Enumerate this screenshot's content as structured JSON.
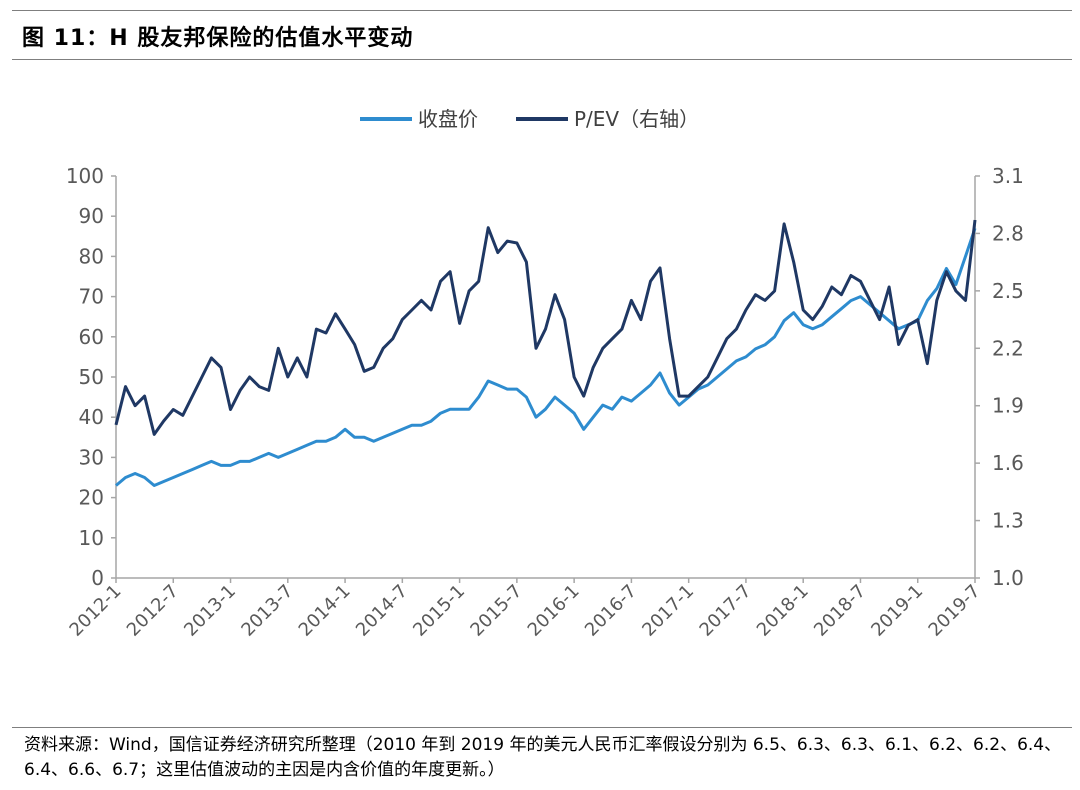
{
  "header": {
    "title": "图 11：H 股友邦保险的估值水平变动"
  },
  "source": {
    "text": "资料来源：Wind，国信证券经济研究所整理（2010 年到 2019 年的美元人民币汇率假设分别为 6.5、6.3、6.3、6.1、6.2、6.2、6.4、6.4、6.6、6.7；这里估值波动的主因是内含价值的年度更新。）"
  },
  "colors": {
    "price": "#2e8ccf",
    "pev": "#1f3864",
    "axis": "#a6a6a6"
  },
  "chart_data": {
    "type": "line",
    "title": "",
    "legend_position": "top",
    "grid": false,
    "x_type": "time",
    "x_range": [
      "2012-01",
      "2019-07"
    ],
    "x_ticks": [
      "2012-1",
      "2012-7",
      "2013-1",
      "2013-7",
      "2014-1",
      "2014-7",
      "2015-1",
      "2015-7",
      "2016-1",
      "2016-7",
      "2017-1",
      "2017-7",
      "2018-1",
      "2018-7",
      "2019-1",
      "2019-7"
    ],
    "y_left": {
      "label": "",
      "min": 0,
      "max": 100,
      "ticks": [
        "0",
        "10",
        "20",
        "30",
        "40",
        "50",
        "60",
        "70",
        "80",
        "90",
        "100"
      ]
    },
    "y_right": {
      "label": "",
      "min": 1.0,
      "max": 3.1,
      "ticks": [
        "1.0",
        "1.3",
        "1.6",
        "1.9",
        "2.2",
        "2.5",
        "2.8",
        "3.1"
      ]
    },
    "series": [
      {
        "name": "收盘价",
        "axis": "left",
        "points": [
          [
            "2012-01",
            23
          ],
          [
            "2012-02",
            25
          ],
          [
            "2012-03",
            26
          ],
          [
            "2012-04",
            25
          ],
          [
            "2012-05",
            23
          ],
          [
            "2012-06",
            24
          ],
          [
            "2012-07",
            25
          ],
          [
            "2012-08",
            26
          ],
          [
            "2012-09",
            27
          ],
          [
            "2012-10",
            28
          ],
          [
            "2012-11",
            29
          ],
          [
            "2012-12",
            28
          ],
          [
            "2013-01",
            28
          ],
          [
            "2013-02",
            29
          ],
          [
            "2013-03",
            29
          ],
          [
            "2013-04",
            30
          ],
          [
            "2013-05",
            31
          ],
          [
            "2013-06",
            30
          ],
          [
            "2013-07",
            31
          ],
          [
            "2013-08",
            32
          ],
          [
            "2013-09",
            33
          ],
          [
            "2013-10",
            34
          ],
          [
            "2013-11",
            34
          ],
          [
            "2013-12",
            35
          ],
          [
            "2014-01",
            37
          ],
          [
            "2014-02",
            35
          ],
          [
            "2014-03",
            35
          ],
          [
            "2014-04",
            34
          ],
          [
            "2014-05",
            35
          ],
          [
            "2014-06",
            36
          ],
          [
            "2014-07",
            37
          ],
          [
            "2014-08",
            38
          ],
          [
            "2014-09",
            38
          ],
          [
            "2014-10",
            39
          ],
          [
            "2014-11",
            41
          ],
          [
            "2014-12",
            42
          ],
          [
            "2015-01",
            42
          ],
          [
            "2015-02",
            42
          ],
          [
            "2015-03",
            45
          ],
          [
            "2015-04",
            49
          ],
          [
            "2015-05",
            48
          ],
          [
            "2015-06",
            47
          ],
          [
            "2015-07",
            47
          ],
          [
            "2015-08",
            45
          ],
          [
            "2015-09",
            40
          ],
          [
            "2015-10",
            42
          ],
          [
            "2015-11",
            45
          ],
          [
            "2015-12",
            43
          ],
          [
            "2016-01",
            41
          ],
          [
            "2016-02",
            37
          ],
          [
            "2016-03",
            40
          ],
          [
            "2016-04",
            43
          ],
          [
            "2016-05",
            42
          ],
          [
            "2016-06",
            45
          ],
          [
            "2016-07",
            44
          ],
          [
            "2016-08",
            46
          ],
          [
            "2016-09",
            48
          ],
          [
            "2016-10",
            51
          ],
          [
            "2016-11",
            46
          ],
          [
            "2016-12",
            43
          ],
          [
            "2017-01",
            45
          ],
          [
            "2017-02",
            47
          ],
          [
            "2017-03",
            48
          ],
          [
            "2017-04",
            50
          ],
          [
            "2017-05",
            52
          ],
          [
            "2017-06",
            54
          ],
          [
            "2017-07",
            55
          ],
          [
            "2017-08",
            57
          ],
          [
            "2017-09",
            58
          ],
          [
            "2017-10",
            60
          ],
          [
            "2017-11",
            64
          ],
          [
            "2017-12",
            66
          ],
          [
            "2018-01",
            63
          ],
          [
            "2018-02",
            62
          ],
          [
            "2018-03",
            63
          ],
          [
            "2018-04",
            65
          ],
          [
            "2018-05",
            67
          ],
          [
            "2018-06",
            69
          ],
          [
            "2018-07",
            70
          ],
          [
            "2018-08",
            68
          ],
          [
            "2018-09",
            66
          ],
          [
            "2018-10",
            64
          ],
          [
            "2018-11",
            62
          ],
          [
            "2018-12",
            63
          ],
          [
            "2019-01",
            64
          ],
          [
            "2019-02",
            69
          ],
          [
            "2019-03",
            72
          ],
          [
            "2019-04",
            77
          ],
          [
            "2019-05",
            73
          ],
          [
            "2019-06",
            80
          ],
          [
            "2019-07",
            87
          ]
        ]
      },
      {
        "name": "P/EV（右轴）",
        "axis": "right",
        "points": [
          [
            "2012-01",
            1.8
          ],
          [
            "2012-02",
            2.0
          ],
          [
            "2012-03",
            1.9
          ],
          [
            "2012-04",
            1.95
          ],
          [
            "2012-05",
            1.75
          ],
          [
            "2012-06",
            1.82
          ],
          [
            "2012-07",
            1.88
          ],
          [
            "2012-08",
            1.85
          ],
          [
            "2012-09",
            1.95
          ],
          [
            "2012-10",
            2.05
          ],
          [
            "2012-11",
            2.15
          ],
          [
            "2012-12",
            2.1
          ],
          [
            "2013-01",
            1.88
          ],
          [
            "2013-02",
            1.98
          ],
          [
            "2013-03",
            2.05
          ],
          [
            "2013-04",
            2.0
          ],
          [
            "2013-05",
            1.98
          ],
          [
            "2013-06",
            2.2
          ],
          [
            "2013-07",
            2.05
          ],
          [
            "2013-08",
            2.15
          ],
          [
            "2013-09",
            2.05
          ],
          [
            "2013-10",
            2.3
          ],
          [
            "2013-11",
            2.28
          ],
          [
            "2013-12",
            2.38
          ],
          [
            "2014-01",
            2.3
          ],
          [
            "2014-02",
            2.22
          ],
          [
            "2014-03",
            2.08
          ],
          [
            "2014-04",
            2.1
          ],
          [
            "2014-05",
            2.2
          ],
          [
            "2014-06",
            2.25
          ],
          [
            "2014-07",
            2.35
          ],
          [
            "2014-08",
            2.4
          ],
          [
            "2014-09",
            2.45
          ],
          [
            "2014-10",
            2.4
          ],
          [
            "2014-11",
            2.55
          ],
          [
            "2014-12",
            2.6
          ],
          [
            "2015-01",
            2.33
          ],
          [
            "2015-02",
            2.5
          ],
          [
            "2015-03",
            2.55
          ],
          [
            "2015-04",
            2.83
          ],
          [
            "2015-05",
            2.7
          ],
          [
            "2015-06",
            2.76
          ],
          [
            "2015-07",
            2.75
          ],
          [
            "2015-08",
            2.65
          ],
          [
            "2015-09",
            2.2
          ],
          [
            "2015-10",
            2.3
          ],
          [
            "2015-11",
            2.48
          ],
          [
            "2015-12",
            2.35
          ],
          [
            "2016-01",
            2.05
          ],
          [
            "2016-02",
            1.95
          ],
          [
            "2016-03",
            2.1
          ],
          [
            "2016-04",
            2.2
          ],
          [
            "2016-05",
            2.25
          ],
          [
            "2016-06",
            2.3
          ],
          [
            "2016-07",
            2.45
          ],
          [
            "2016-08",
            2.35
          ],
          [
            "2016-09",
            2.55
          ],
          [
            "2016-10",
            2.62
          ],
          [
            "2016-11",
            2.25
          ],
          [
            "2016-12",
            1.95
          ],
          [
            "2017-01",
            1.95
          ],
          [
            "2017-02",
            2.0
          ],
          [
            "2017-03",
            2.05
          ],
          [
            "2017-04",
            2.15
          ],
          [
            "2017-05",
            2.25
          ],
          [
            "2017-06",
            2.3
          ],
          [
            "2017-07",
            2.4
          ],
          [
            "2017-08",
            2.48
          ],
          [
            "2017-09",
            2.45
          ],
          [
            "2017-10",
            2.5
          ],
          [
            "2017-11",
            2.85
          ],
          [
            "2017-12",
            2.65
          ],
          [
            "2018-01",
            2.4
          ],
          [
            "2018-02",
            2.35
          ],
          [
            "2018-03",
            2.42
          ],
          [
            "2018-04",
            2.52
          ],
          [
            "2018-05",
            2.48
          ],
          [
            "2018-06",
            2.58
          ],
          [
            "2018-07",
            2.55
          ],
          [
            "2018-08",
            2.45
          ],
          [
            "2018-09",
            2.35
          ],
          [
            "2018-10",
            2.52
          ],
          [
            "2018-11",
            2.22
          ],
          [
            "2018-12",
            2.32
          ],
          [
            "2019-01",
            2.35
          ],
          [
            "2019-02",
            2.12
          ],
          [
            "2019-03",
            2.45
          ],
          [
            "2019-04",
            2.6
          ],
          [
            "2019-05",
            2.5
          ],
          [
            "2019-06",
            2.45
          ],
          [
            "2019-07",
            2.87
          ]
        ]
      }
    ]
  }
}
